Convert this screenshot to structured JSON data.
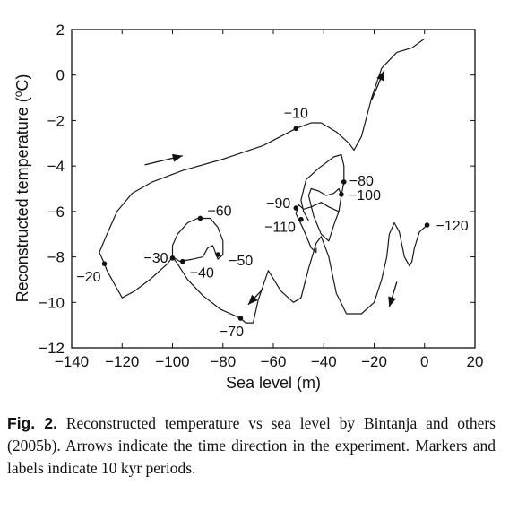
{
  "chart_data": {
    "type": "line",
    "xlabel": "Sea level (m)",
    "ylabel": "Reconstructed temperature (°C)",
    "ylabel_parts": {
      "main": "Reconstructed temperature (",
      "super": "o",
      "unit": "C)"
    },
    "xlim": [
      -140,
      20
    ],
    "ylim": [
      -12,
      2
    ],
    "xticks": [
      -140,
      -120,
      -100,
      -80,
      -60,
      -40,
      -20,
      0,
      20
    ],
    "yticks": [
      -12,
      -10,
      -8,
      -6,
      -4,
      -2,
      0,
      2
    ],
    "grid": false,
    "series": [
      {
        "values": [
          [
            1,
            -6.6
          ],
          [
            -2,
            -6.9
          ],
          [
            -4,
            -7.6
          ],
          [
            -5,
            -8.2
          ],
          [
            -6,
            -8.4
          ],
          [
            -8,
            -8.0
          ],
          [
            -10,
            -6.9
          ],
          [
            -12,
            -6.5
          ],
          [
            -14,
            -7.0
          ],
          [
            -15,
            -8.0
          ],
          [
            -17,
            -9.0
          ],
          [
            -20,
            -10.0
          ],
          [
            -25,
            -10.5
          ],
          [
            -31,
            -10.5
          ],
          [
            -35,
            -9.6
          ],
          [
            -38,
            -8.0
          ],
          [
            -41,
            -7.1
          ],
          [
            -43,
            -7.4
          ],
          [
            -46,
            -8.5
          ],
          [
            -49,
            -9.8
          ],
          [
            -52,
            -10.0
          ],
          [
            -57,
            -9.5
          ],
          [
            -62,
            -8.6
          ],
          [
            -66,
            -9.9
          ],
          [
            -68,
            -10.9
          ],
          [
            -71,
            -10.9
          ],
          [
            -73,
            -10.7
          ],
          [
            -81,
            -10.3
          ],
          [
            -88,
            -9.7
          ],
          [
            -94,
            -9.0
          ],
          [
            -98,
            -8.3
          ],
          [
            -100,
            -8.0
          ],
          [
            -102,
            -8.3
          ],
          [
            -109,
            -9.0
          ],
          [
            -115,
            -9.5
          ],
          [
            -120,
            -9.8
          ],
          [
            -123,
            -9.2
          ],
          [
            -126,
            -8.6
          ],
          [
            -127,
            -8.3
          ],
          [
            -129,
            -7.8
          ],
          [
            -126,
            -7.0
          ],
          [
            -122,
            -6.0
          ],
          [
            -116,
            -5.2
          ],
          [
            -108,
            -4.7
          ],
          [
            -96,
            -4.2
          ],
          [
            -80,
            -3.7
          ],
          [
            -64,
            -3.1
          ],
          [
            -51,
            -2.35
          ],
          [
            -45,
            -2.1
          ],
          [
            -41,
            -2.1
          ],
          [
            -35,
            -2.5
          ],
          [
            -30,
            -3.0
          ],
          [
            -28,
            -3.3
          ],
          [
            -25,
            -2.7
          ],
          [
            -21,
            -1.0
          ],
          [
            -17,
            0.3
          ],
          [
            -11,
            1.0
          ],
          [
            -5,
            1.2
          ],
          [
            0,
            1.6
          ]
        ]
      },
      {
        "values": [
          [
            -100,
            -8.1
          ],
          [
            -100,
            -7.5
          ],
          [
            -98,
            -7.0
          ],
          [
            -94,
            -6.5
          ],
          [
            -90,
            -6.3
          ],
          [
            -85,
            -6.3
          ],
          [
            -82,
            -6.7
          ],
          [
            -80,
            -7.3
          ],
          [
            -80,
            -7.9
          ],
          [
            -82,
            -8.1
          ],
          [
            -84,
            -7.5
          ],
          [
            -86,
            -7.6
          ],
          [
            -88,
            -8.0
          ],
          [
            -92,
            -8.1
          ],
          [
            -97,
            -8.2
          ],
          [
            -100,
            -8.0
          ]
        ]
      },
      {
        "values": [
          [
            -46,
            -6.4
          ],
          [
            -48,
            -6.0
          ],
          [
            -49,
            -5.5
          ],
          [
            -47,
            -4.6
          ],
          [
            -42,
            -4.1
          ],
          [
            -36,
            -3.6
          ],
          [
            -33,
            -3.5
          ],
          [
            -32,
            -4.0
          ],
          [
            -32,
            -4.7
          ],
          [
            -33,
            -5.3
          ],
          [
            -34,
            -6.0
          ],
          [
            -36,
            -6.6
          ],
          [
            -38,
            -7.3
          ],
          [
            -41,
            -7.0
          ],
          [
            -44,
            -6.2
          ],
          [
            -46,
            -5.3
          ],
          [
            -45,
            -5.0
          ],
          [
            -42,
            -5.1
          ],
          [
            -39,
            -5.3
          ],
          [
            -36,
            -5.2
          ],
          [
            -34,
            -5.0
          ],
          [
            -33,
            -5.3
          ],
          [
            -34,
            -6.0
          ],
          [
            -38,
            -5.8
          ],
          [
            -41,
            -5.6
          ],
          [
            -45,
            -5.8
          ],
          [
            -48,
            -5.9
          ],
          [
            -50,
            -5.7
          ],
          [
            -51,
            -6.1
          ],
          [
            -48,
            -6.8
          ],
          [
            -45,
            -7.6
          ],
          [
            -43,
            -7.8
          ],
          [
            -43,
            -7.6
          ]
        ]
      }
    ],
    "markers": [
      {
        "x": -51,
        "y": -2.35,
        "label": "−10"
      },
      {
        "x": -127,
        "y": -8.3,
        "label": "−20"
      },
      {
        "x": -100,
        "y": -8.05,
        "label": "−30"
      },
      {
        "x": -96,
        "y": -8.2,
        "label": "−40"
      },
      {
        "x": -82,
        "y": -7.9,
        "label": "−50"
      },
      {
        "x": -89,
        "y": -6.3,
        "label": "−60"
      },
      {
        "x": -73,
        "y": -10.7,
        "label": "−70"
      },
      {
        "x": -32,
        "y": -4.7,
        "label": "−80"
      },
      {
        "x": -51,
        "y": -5.85,
        "label": "−90"
      },
      {
        "x": -33,
        "y": -5.25,
        "label": "−100"
      },
      {
        "x": -49,
        "y": -6.35,
        "label": "−110"
      },
      {
        "x": 1,
        "y": -6.6,
        "label": "−120"
      }
    ],
    "arrows": [
      {
        "from": [
          -111,
          -3.95
        ],
        "to": [
          -96,
          -3.55
        ]
      },
      {
        "from": [
          -21,
          -1.1
        ],
        "to": [
          -16,
          0.2
        ]
      },
      {
        "from": [
          -64,
          -9.4
        ],
        "to": [
          -70,
          -10.1
        ]
      },
      {
        "from": [
          -11,
          -9.1
        ],
        "to": [
          -14,
          -10.2
        ]
      }
    ]
  },
  "caption": {
    "label": "Fig. 2.",
    "text": " Reconstructed temperature vs sea level by Bintanja and others (2005b). Arrows indicate the time direction in the experiment. Markers and labels indicate 10 kyr periods."
  }
}
